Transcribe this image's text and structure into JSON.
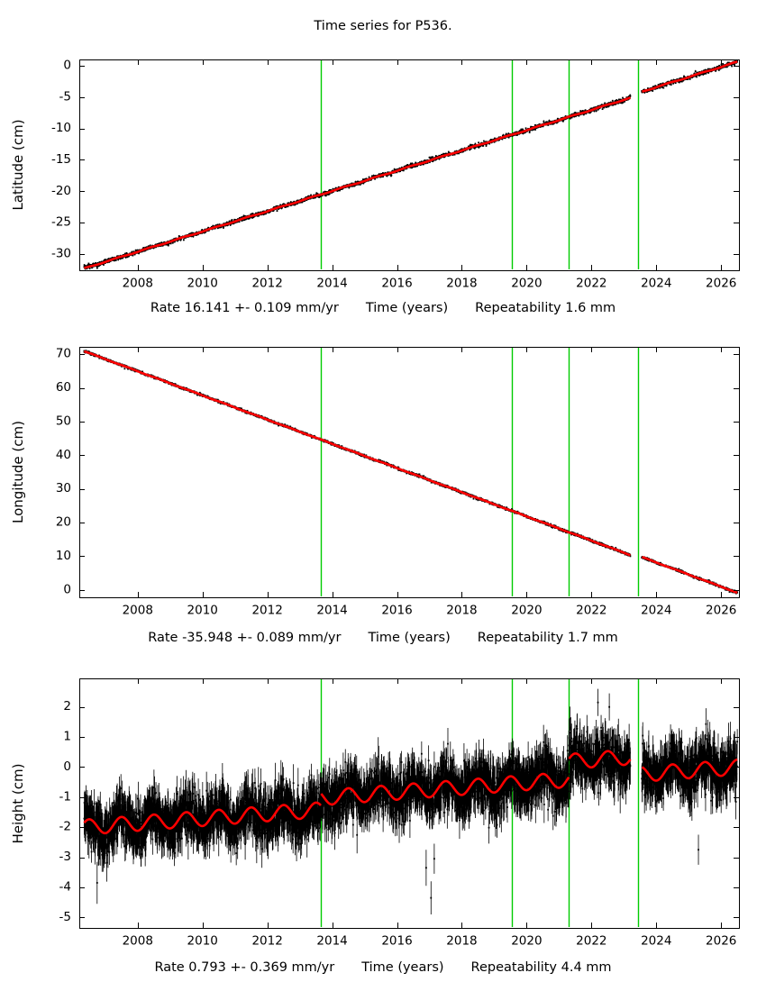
{
  "title": "Time series for P536.",
  "colors": {
    "background": "#ffffff",
    "data": "#000000",
    "model_line": "#ff0000",
    "event_line": "#00cc00",
    "axis": "#000000"
  },
  "chart_data": [
    {
      "type": "scatter",
      "component": "latitude",
      "ylabel": "Latitude (cm)",
      "xlabel": "Time (years)",
      "rate_label": "Rate 16.141 +- 0.109 mm/yr",
      "repeatability_label": "Repeatability 1.6 mm",
      "rate_mm_per_yr": 16.141,
      "rate_sigma_mm_per_yr": 0.109,
      "repeatability_mm": 1.6,
      "xlim": [
        2006.2,
        2026.55
      ],
      "ylim": [
        -32.6,
        1.0
      ],
      "xticks": [
        2008,
        2010,
        2012,
        2014,
        2016,
        2018,
        2020,
        2022,
        2024,
        2026
      ],
      "yticks": [
        0,
        -5,
        -10,
        -15,
        -20,
        -25,
        -30
      ],
      "event_lines_x": [
        2013.65,
        2019.55,
        2021.3,
        2023.45
      ],
      "data_span": [
        2006.35,
        2026.5
      ],
      "sample_step_yr": 0.006,
      "gaps": [
        [
          2023.2,
          2023.55
        ]
      ],
      "model": {
        "t0": 2006.35,
        "intercept_cm": -32.3,
        "rate_cm_per_yr": 1.6141,
        "seasonal_amp_cm": 0.06,
        "seasonal_phase_yr": 0.1,
        "offsets": [
          {
            "t": 2023.45,
            "dy_cm": 0.4
          }
        ]
      },
      "noise_sigma_cm": 0.15,
      "error_bar_cm": 0.15,
      "outliers": [
        {
          "x": 2017.0,
          "y": -14.62,
          "err": 0.15
        },
        {
          "x": 2017.05,
          "y": -14.7,
          "err": 0.15
        },
        {
          "x": 2017.1,
          "y": -14.55,
          "err": 0.15
        },
        {
          "x": 2019.83,
          "y": -10.15,
          "err": 0.15
        },
        {
          "x": 2019.88,
          "y": -10.22,
          "err": 0.15
        }
      ]
    },
    {
      "type": "scatter",
      "component": "longitude",
      "ylabel": "Longitude (cm)",
      "xlabel": "Time (years)",
      "rate_label": "Rate -35.948 +- 0.089 mm/yr",
      "repeatability_label": "Repeatability 1.7 mm",
      "rate_mm_per_yr": -35.948,
      "rate_sigma_mm_per_yr": 0.089,
      "repeatability_mm": 1.7,
      "xlim": [
        2006.2,
        2026.55
      ],
      "ylim": [
        -2.2,
        72.2
      ],
      "xticks": [
        2008,
        2010,
        2012,
        2014,
        2016,
        2018,
        2020,
        2022,
        2024,
        2026
      ],
      "yticks": [
        70,
        60,
        50,
        40,
        30,
        20,
        10,
        0
      ],
      "event_lines_x": [
        2013.65,
        2019.55,
        2021.3,
        2023.45
      ],
      "data_span": [
        2006.35,
        2026.5
      ],
      "sample_step_yr": 0.006,
      "gaps": [
        [
          2023.2,
          2023.55
        ]
      ],
      "model": {
        "t0": 2006.35,
        "intercept_cm": 70.9,
        "rate_cm_per_yr": -3.5948,
        "seasonal_amp_cm": 0.06,
        "seasonal_phase_yr": 0.45,
        "offsets": [
          {
            "t": 2023.45,
            "dy_cm": 0.7
          }
        ]
      },
      "noise_sigma_cm": 0.18,
      "error_bar_cm": 0.18,
      "outliers": [
        {
          "x": 2007.6,
          "y": 65.7,
          "err": 0.2
        }
      ]
    },
    {
      "type": "scatter",
      "component": "height",
      "ylabel": "Height (cm)",
      "xlabel": "Time (years)",
      "rate_label": "Rate 0.793 +- 0.369 mm/yr",
      "repeatability_label": "Repeatability 4.4 mm",
      "rate_mm_per_yr": 0.793,
      "rate_sigma_mm_per_yr": 0.369,
      "repeatability_mm": 4.4,
      "xlim": [
        2006.2,
        2026.55
      ],
      "ylim": [
        -5.35,
        2.95
      ],
      "xticks": [
        2008,
        2010,
        2012,
        2014,
        2016,
        2018,
        2020,
        2022,
        2024,
        2026
      ],
      "yticks": [
        2,
        1,
        0,
        -1,
        -2,
        -3,
        -4,
        -5
      ],
      "event_lines_x": [
        2013.65,
        2019.55,
        2021.3,
        2023.45
      ],
      "data_span": [
        2006.35,
        2026.5
      ],
      "sample_step_yr": 0.006,
      "gaps": [
        [
          2023.2,
          2023.55
        ]
      ],
      "model": {
        "t0": 2006.35,
        "intercept_cm": -2.0,
        "rate_cm_per_yr": 0.0793,
        "seasonal_amp_cm": 0.25,
        "seasonal_phase_yr": 0.25,
        "offsets": [
          {
            "t": 2013.65,
            "dy_cm": 0.4
          },
          {
            "t": 2021.3,
            "dy_cm": 0.6
          },
          {
            "t": 2023.45,
            "dy_cm": -0.6
          }
        ]
      },
      "noise_sigma_cm": 0.4,
      "error_bar_cm": 0.5,
      "outliers": [
        {
          "x": 2006.75,
          "y": -3.85,
          "err": 0.7
        },
        {
          "x": 2016.9,
          "y": -3.35,
          "err": 0.6
        },
        {
          "x": 2017.05,
          "y": -4.35,
          "err": 0.55
        },
        {
          "x": 2017.15,
          "y": -3.05,
          "err": 0.5
        },
        {
          "x": 2022.2,
          "y": 2.15,
          "err": 0.45
        },
        {
          "x": 2022.55,
          "y": 2.0,
          "err": 0.45
        },
        {
          "x": 2025.3,
          "y": -2.75,
          "err": 0.5
        }
      ]
    }
  ]
}
